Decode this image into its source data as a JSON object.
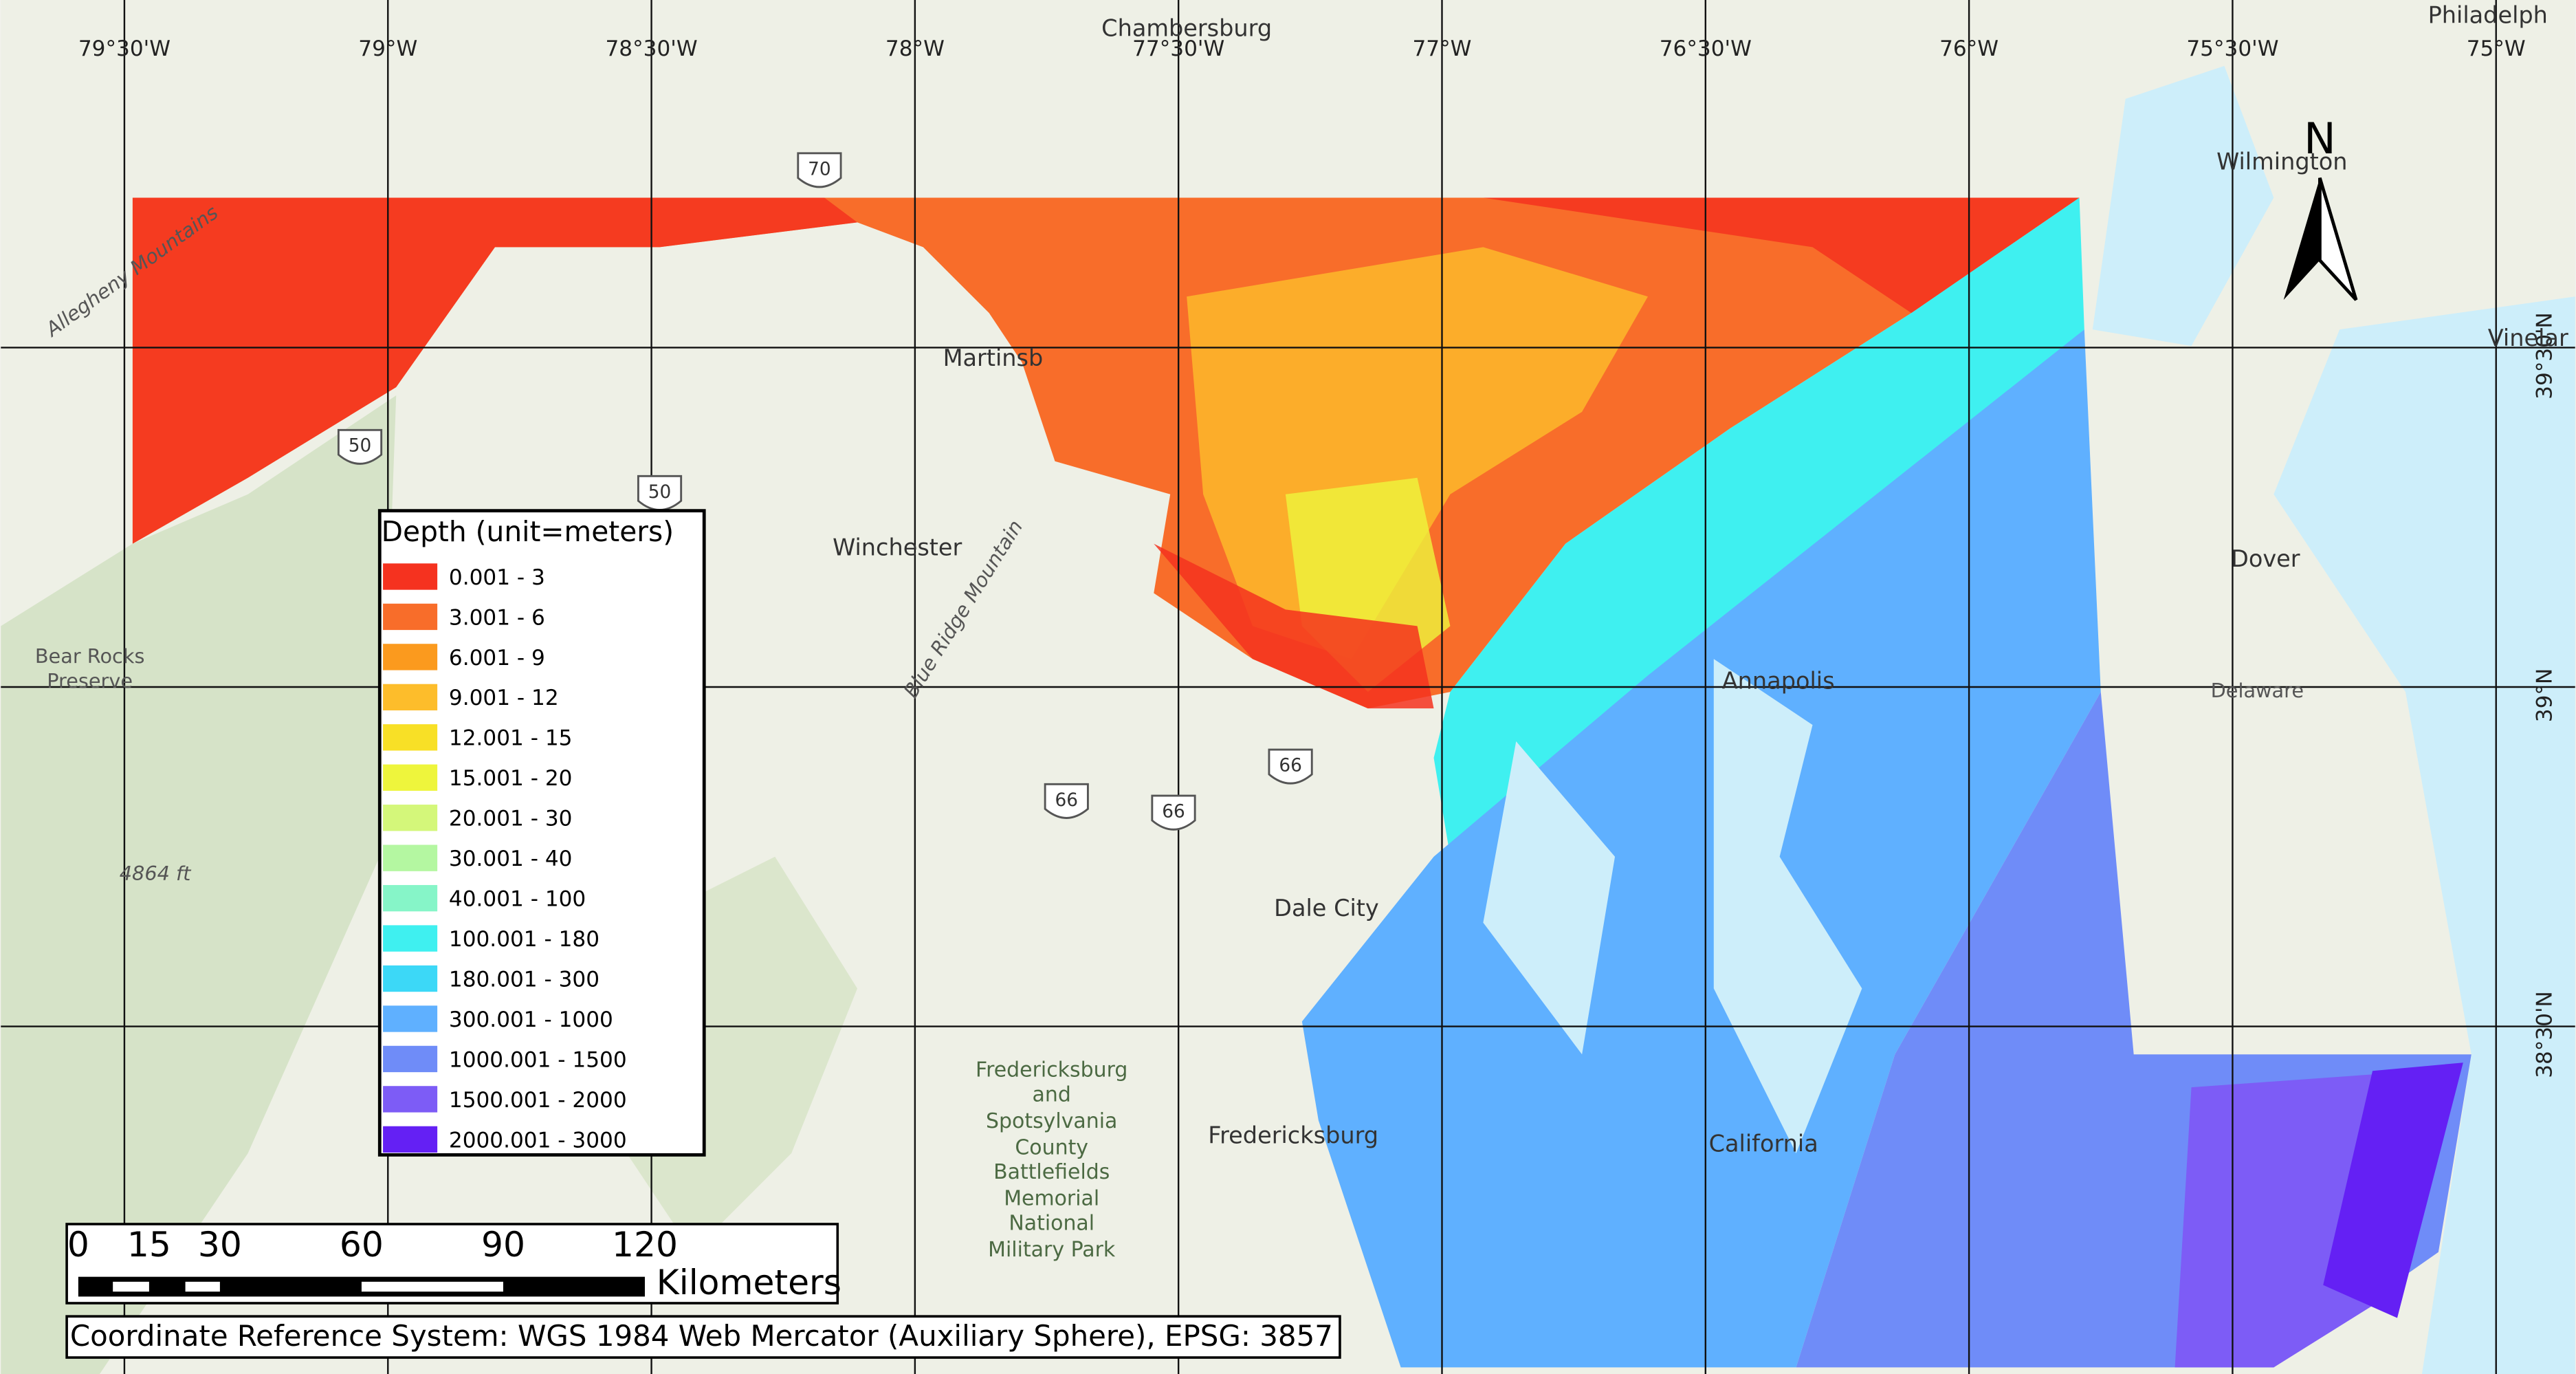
{
  "map": {
    "longitude_labels": [
      "79°30'W",
      "79°W",
      "78°30'W",
      "78°W",
      "77°30'W",
      "77°W",
      "76°30'W",
      "76°W",
      "75°30'W",
      "75°W"
    ],
    "latitude_labels": [
      "39°30'N",
      "39°N",
      "38°30'N"
    ],
    "places": [
      "Chambersburg",
      "Philadelph",
      "Wilmington",
      "Vinelar",
      "Dover",
      "Delaware",
      "Martinsb",
      "Winchester",
      "Bear Rocks",
      "Preserve",
      "4864 ft",
      "Allegheny Mountains",
      "Blue Ridge Mountain",
      "Dale City",
      "Fredericksburg",
      "Fredericksburg",
      "and",
      "Spotsylvania",
      "County",
      "Battlefields",
      "Memorial",
      "National",
      "Military Park",
      "California",
      "Annapolis"
    ],
    "highway_shields": [
      "70",
      "50",
      "50",
      "66",
      "66",
      "66"
    ],
    "north_arrow": "N"
  },
  "legend": {
    "title": "Depth (unit=meters)",
    "items": [
      {
        "label": "0.001 - 3",
        "color": "#f5321f"
      },
      {
        "label": "3.001 - 6",
        "color": "#f86d2a"
      },
      {
        "label": "6.001 - 9",
        "color": "#fb9a1e"
      },
      {
        "label": "9.001 - 12",
        "color": "#fdbd2b"
      },
      {
        "label": "12.001 - 15",
        "color": "#f8e026"
      },
      {
        "label": "15.001 - 20",
        "color": "#eef53c"
      },
      {
        "label": "20.001 - 30",
        "color": "#d4f77a"
      },
      {
        "label": "30.001 - 40",
        "color": "#b4f7a1"
      },
      {
        "label": "40.001 - 100",
        "color": "#86f5c8"
      },
      {
        "label": "100.001 - 180",
        "color": "#3ff0f0"
      },
      {
        "label": "180.001 - 300",
        "color": "#3cd8f7"
      },
      {
        "label": "300.001 - 1000",
        "color": "#5fb0ff"
      },
      {
        "label": "1000.001 - 1500",
        "color": "#6f8cf8"
      },
      {
        "label": "1500.001 - 2000",
        "color": "#7d5cf6"
      },
      {
        "label": "2000.001 - 3000",
        "color": "#6420f4"
      }
    ]
  },
  "scale_bar": {
    "labels": [
      "0",
      "15",
      "30",
      "60",
      "90",
      "120"
    ],
    "unit": "Kilometers"
  },
  "crs": "Coordinate Reference System: WGS 1984 Web Mercator (Auxiliary Sphere), EPSG: 3857"
}
